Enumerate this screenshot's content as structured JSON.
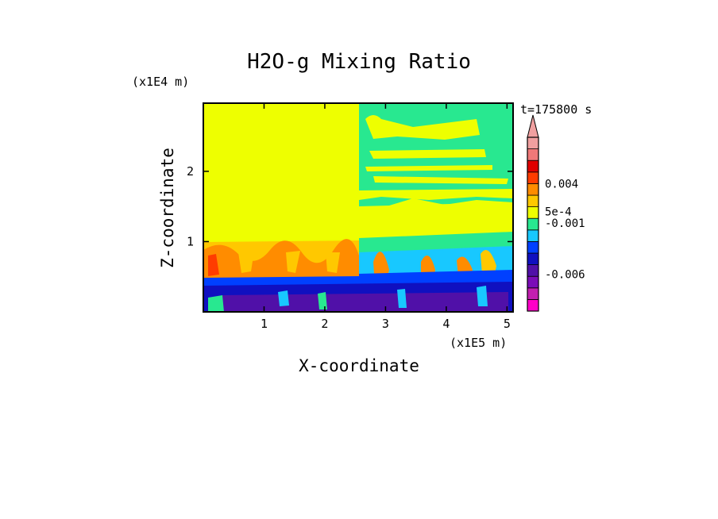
{
  "chart_data": {
    "type": "heatmap",
    "title": "H2O-g Mixing Ratio",
    "xlabel": "X-coordinate",
    "ylabel": "Z-coordinate",
    "x_scale_label": "(x1E5 m)",
    "y_scale_label": "(x1E4 m)",
    "time_label": "t=175800 s",
    "xlim": [
      0,
      5.1
    ],
    "ylim": [
      0,
      2.97
    ],
    "x_ticks": [
      1,
      2,
      3,
      4,
      5
    ],
    "x_tick_labels": [
      "1",
      "2",
      "3",
      "4",
      "5"
    ],
    "y_ticks": [
      1,
      2
    ],
    "y_tick_labels": [
      "1",
      "2"
    ],
    "colorbar": {
      "colors": [
        "#ff00c8",
        "#c21fb0",
        "#7b0cb8",
        "#5010a8",
        "#1010c0",
        "#0040ff",
        "#18c8ff",
        "#28e890",
        "#eeff00",
        "#ffc800",
        "#ff8c00",
        "#ff3c00",
        "#e00000",
        "#f07878",
        "#f0a0a0"
      ],
      "labels": [
        {
          "text": "0.004",
          "index": 11
        },
        {
          "text": "5e-4",
          "index": 8.6
        },
        {
          "text": "-0.001",
          "index": 7.6
        },
        {
          "text": "-0.006",
          "index": 3.2
        }
      ],
      "extend": "max"
    }
  }
}
